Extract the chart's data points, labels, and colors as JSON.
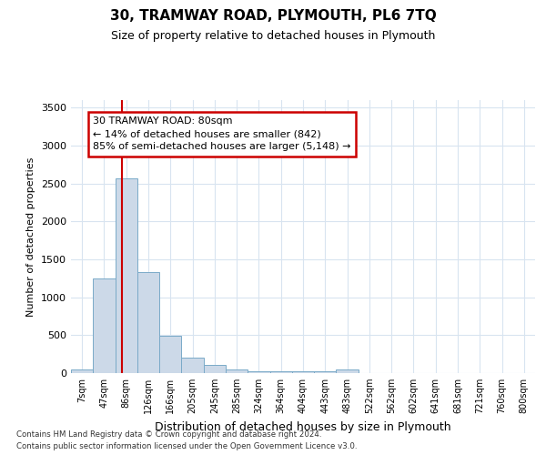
{
  "title": "30, TRAMWAY ROAD, PLYMOUTH, PL6 7TQ",
  "subtitle": "Size of property relative to detached houses in Plymouth",
  "xlabel": "Distribution of detached houses by size in Plymouth",
  "ylabel": "Number of detached properties",
  "bar_labels": [
    "7sqm",
    "47sqm",
    "86sqm",
    "126sqm",
    "166sqm",
    "205sqm",
    "245sqm",
    "285sqm",
    "324sqm",
    "364sqm",
    "404sqm",
    "443sqm",
    "483sqm",
    "522sqm",
    "562sqm",
    "602sqm",
    "641sqm",
    "681sqm",
    "721sqm",
    "760sqm",
    "800sqm"
  ],
  "bar_values": [
    50,
    1250,
    2570,
    1330,
    490,
    200,
    110,
    50,
    20,
    20,
    20,
    20,
    50,
    5,
    5,
    5,
    5,
    5,
    5,
    5,
    5
  ],
  "bar_color": "#ccd9e8",
  "bar_edge_color": "#7aaac8",
  "ylim": [
    0,
    3600
  ],
  "yticks": [
    0,
    500,
    1000,
    1500,
    2000,
    2500,
    3000,
    3500
  ],
  "property_line_color": "#cc0000",
  "annotation_text": "30 TRAMWAY ROAD: 80sqm\n← 14% of detached houses are smaller (842)\n85% of semi-detached houses are larger (5,148) →",
  "annotation_box_facecolor": "#ffffff",
  "annotation_box_edgecolor": "#cc0000",
  "grid_color": "#d8e4f0",
  "bg_color": "#ffffff",
  "footer1": "Contains HM Land Registry data © Crown copyright and database right 2024.",
  "footer2": "Contains public sector information licensed under the Open Government Licence v3.0."
}
